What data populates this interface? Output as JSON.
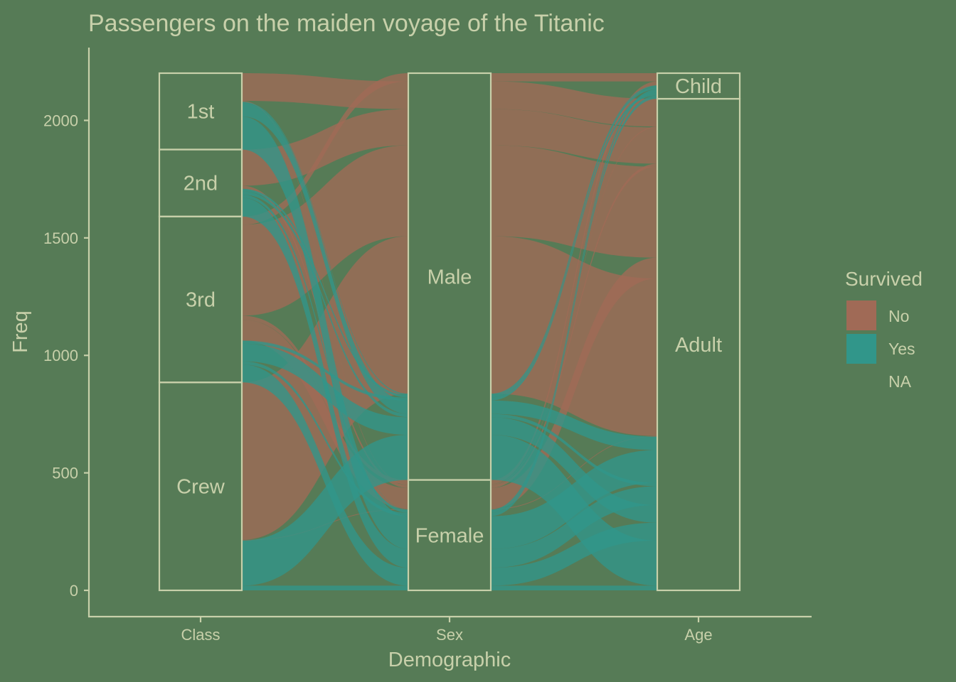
{
  "chart_data": {
    "type": "alluvial",
    "title": "Passengers on the maiden voyage of the Titanic",
    "xlabel": "Demographic",
    "ylabel": "Freq",
    "ylim": [
      0,
      2201
    ],
    "yticks": [
      0,
      500,
      1000,
      1500,
      2000
    ],
    "axes": [
      {
        "name": "Class",
        "strata": [
          "1st",
          "2nd",
          "3rd",
          "Crew"
        ]
      },
      {
        "name": "Sex",
        "strata": [
          "Male",
          "Female"
        ]
      },
      {
        "name": "Age",
        "strata": [
          "Child",
          "Adult"
        ]
      }
    ],
    "fill_variable": "Survived",
    "legend": {
      "title": "Survived",
      "position": "right",
      "entries": [
        {
          "label": "No",
          "color": "#a06a56"
        },
        {
          "label": "Yes",
          "color": "#31968a"
        },
        {
          "label": "NA",
          "color": null
        }
      ]
    },
    "flows": [
      {
        "Class": "1st",
        "Sex": "Male",
        "Age": "Child",
        "Survived": "No",
        "Freq": 0
      },
      {
        "Class": "2nd",
        "Sex": "Male",
        "Age": "Child",
        "Survived": "No",
        "Freq": 0
      },
      {
        "Class": "3rd",
        "Sex": "Male",
        "Age": "Child",
        "Survived": "No",
        "Freq": 35
      },
      {
        "Class": "Crew",
        "Sex": "Male",
        "Age": "Child",
        "Survived": "No",
        "Freq": 0
      },
      {
        "Class": "1st",
        "Sex": "Female",
        "Age": "Child",
        "Survived": "No",
        "Freq": 0
      },
      {
        "Class": "2nd",
        "Sex": "Female",
        "Age": "Child",
        "Survived": "No",
        "Freq": 0
      },
      {
        "Class": "3rd",
        "Sex": "Female",
        "Age": "Child",
        "Survived": "No",
        "Freq": 17
      },
      {
        "Class": "Crew",
        "Sex": "Female",
        "Age": "Child",
        "Survived": "No",
        "Freq": 0
      },
      {
        "Class": "1st",
        "Sex": "Male",
        "Age": "Adult",
        "Survived": "No",
        "Freq": 118
      },
      {
        "Class": "2nd",
        "Sex": "Male",
        "Age": "Adult",
        "Survived": "No",
        "Freq": 154
      },
      {
        "Class": "3rd",
        "Sex": "Male",
        "Age": "Adult",
        "Survived": "No",
        "Freq": 387
      },
      {
        "Class": "Crew",
        "Sex": "Male",
        "Age": "Adult",
        "Survived": "No",
        "Freq": 670
      },
      {
        "Class": "1st",
        "Sex": "Female",
        "Age": "Adult",
        "Survived": "No",
        "Freq": 4
      },
      {
        "Class": "2nd",
        "Sex": "Female",
        "Age": "Adult",
        "Survived": "No",
        "Freq": 13
      },
      {
        "Class": "3rd",
        "Sex": "Female",
        "Age": "Adult",
        "Survived": "No",
        "Freq": 89
      },
      {
        "Class": "Crew",
        "Sex": "Female",
        "Age": "Adult",
        "Survived": "No",
        "Freq": 3
      },
      {
        "Class": "1st",
        "Sex": "Male",
        "Age": "Child",
        "Survived": "Yes",
        "Freq": 5
      },
      {
        "Class": "2nd",
        "Sex": "Male",
        "Age": "Child",
        "Survived": "Yes",
        "Freq": 11
      },
      {
        "Class": "3rd",
        "Sex": "Male",
        "Age": "Child",
        "Survived": "Yes",
        "Freq": 13
      },
      {
        "Class": "Crew",
        "Sex": "Male",
        "Age": "Child",
        "Survived": "Yes",
        "Freq": 0
      },
      {
        "Class": "1st",
        "Sex": "Female",
        "Age": "Child",
        "Survived": "Yes",
        "Freq": 1
      },
      {
        "Class": "2nd",
        "Sex": "Female",
        "Age": "Child",
        "Survived": "Yes",
        "Freq": 13
      },
      {
        "Class": "3rd",
        "Sex": "Female",
        "Age": "Child",
        "Survived": "Yes",
        "Freq": 14
      },
      {
        "Class": "Crew",
        "Sex": "Female",
        "Age": "Child",
        "Survived": "Yes",
        "Freq": 0
      },
      {
        "Class": "1st",
        "Sex": "Male",
        "Age": "Adult",
        "Survived": "Yes",
        "Freq": 57
      },
      {
        "Class": "2nd",
        "Sex": "Male",
        "Age": "Adult",
        "Survived": "Yes",
        "Freq": 14
      },
      {
        "Class": "3rd",
        "Sex": "Male",
        "Age": "Adult",
        "Survived": "Yes",
        "Freq": 75
      },
      {
        "Class": "Crew",
        "Sex": "Male",
        "Age": "Adult",
        "Survived": "Yes",
        "Freq": 192
      },
      {
        "Class": "1st",
        "Sex": "Female",
        "Age": "Adult",
        "Survived": "Yes",
        "Freq": 140
      },
      {
        "Class": "2nd",
        "Sex": "Female",
        "Age": "Adult",
        "Survived": "Yes",
        "Freq": 80
      },
      {
        "Class": "3rd",
        "Sex": "Female",
        "Age": "Adult",
        "Survived": "Yes",
        "Freq": 76
      },
      {
        "Class": "Crew",
        "Sex": "Female",
        "Age": "Adult",
        "Survived": "Yes",
        "Freq": 20
      }
    ]
  }
}
